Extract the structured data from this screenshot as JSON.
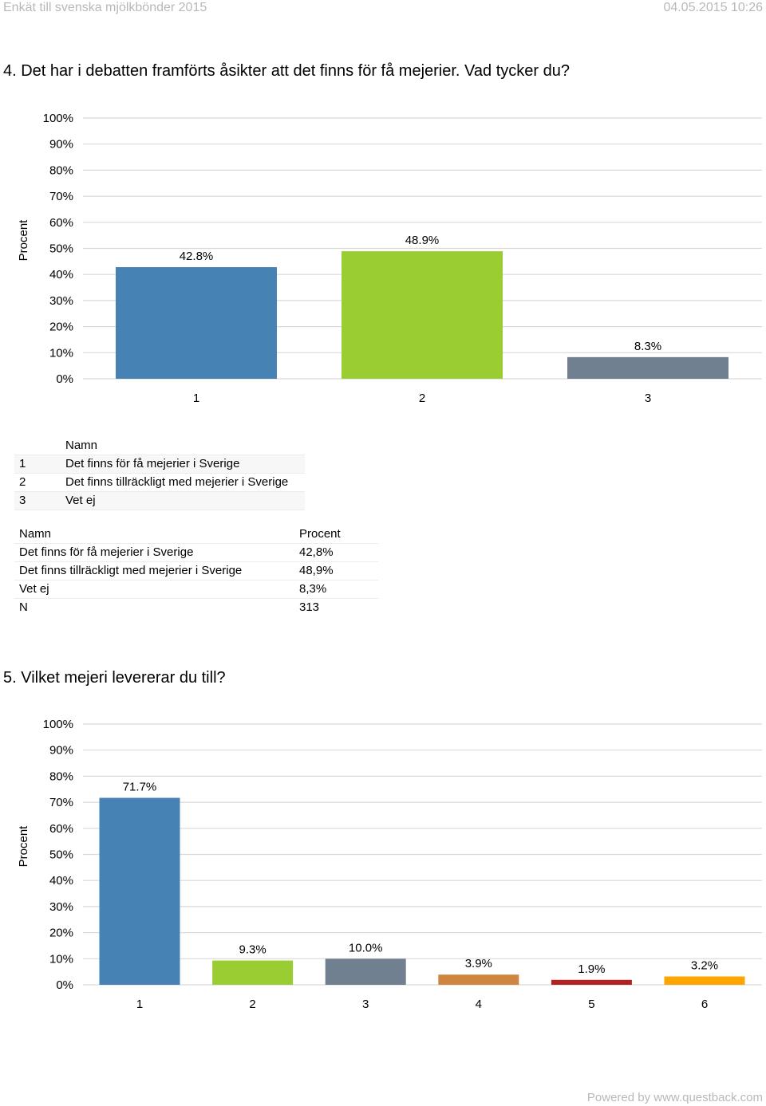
{
  "header": {
    "survey_title": "Enkät till svenska mjölkbönder 2015",
    "date": "04.05.2015 10:26"
  },
  "q4": {
    "title": "4. Det har i debatten framförts åsikter att det finns för få mejerier. Vad tycker du?",
    "legend_header": "Namn",
    "legend": [
      {
        "num": "1",
        "label": "Det finns för få mejerier i Sverige"
      },
      {
        "num": "2",
        "label": "Det finns tillräckligt med mejerier i Sverige"
      },
      {
        "num": "3",
        "label": "Vet ej"
      }
    ],
    "table": {
      "col_name": "Namn",
      "col_pct": "Procent",
      "rows": [
        {
          "name": "Det finns för få mejerier i Sverige",
          "pct": "42,8%"
        },
        {
          "name": "Det finns tillräckligt med mejerier i Sverige",
          "pct": "48,9%"
        },
        {
          "name": "Vet ej",
          "pct": "8,3%"
        },
        {
          "name": "N",
          "pct": "313"
        }
      ]
    }
  },
  "q5": {
    "title": "5. Vilket mejeri levererar du till?"
  },
  "footer": "Powered by www.questback.com",
  "chart_data": [
    {
      "type": "bar",
      "ylabel": "Procent",
      "ylim": [
        0,
        100
      ],
      "yticks": [
        "0%",
        "10%",
        "20%",
        "30%",
        "40%",
        "50%",
        "60%",
        "70%",
        "80%",
        "90%",
        "100%"
      ],
      "categories": [
        "1",
        "2",
        "3"
      ],
      "values": [
        42.8,
        48.9,
        8.3
      ],
      "data_labels": [
        "42.8%",
        "48.9%",
        "8.3%"
      ],
      "colors": [
        "#4682b4",
        "#9acd32",
        "#708090"
      ],
      "grid": true
    },
    {
      "type": "bar",
      "ylabel": "Procent",
      "ylim": [
        0,
        100
      ],
      "yticks": [
        "0%",
        "10%",
        "20%",
        "30%",
        "40%",
        "50%",
        "60%",
        "70%",
        "80%",
        "90%",
        "100%"
      ],
      "categories": [
        "1",
        "2",
        "3",
        "4",
        "5",
        "6"
      ],
      "values": [
        71.7,
        9.3,
        10.0,
        3.9,
        1.9,
        3.2
      ],
      "data_labels": [
        "71.7%",
        "9.3%",
        "10.0%",
        "3.9%",
        "1.9%",
        "3.2%"
      ],
      "colors": [
        "#4682b4",
        "#9acd32",
        "#708090",
        "#cd853f",
        "#b22222",
        "#ffa500"
      ],
      "grid": true
    }
  ]
}
